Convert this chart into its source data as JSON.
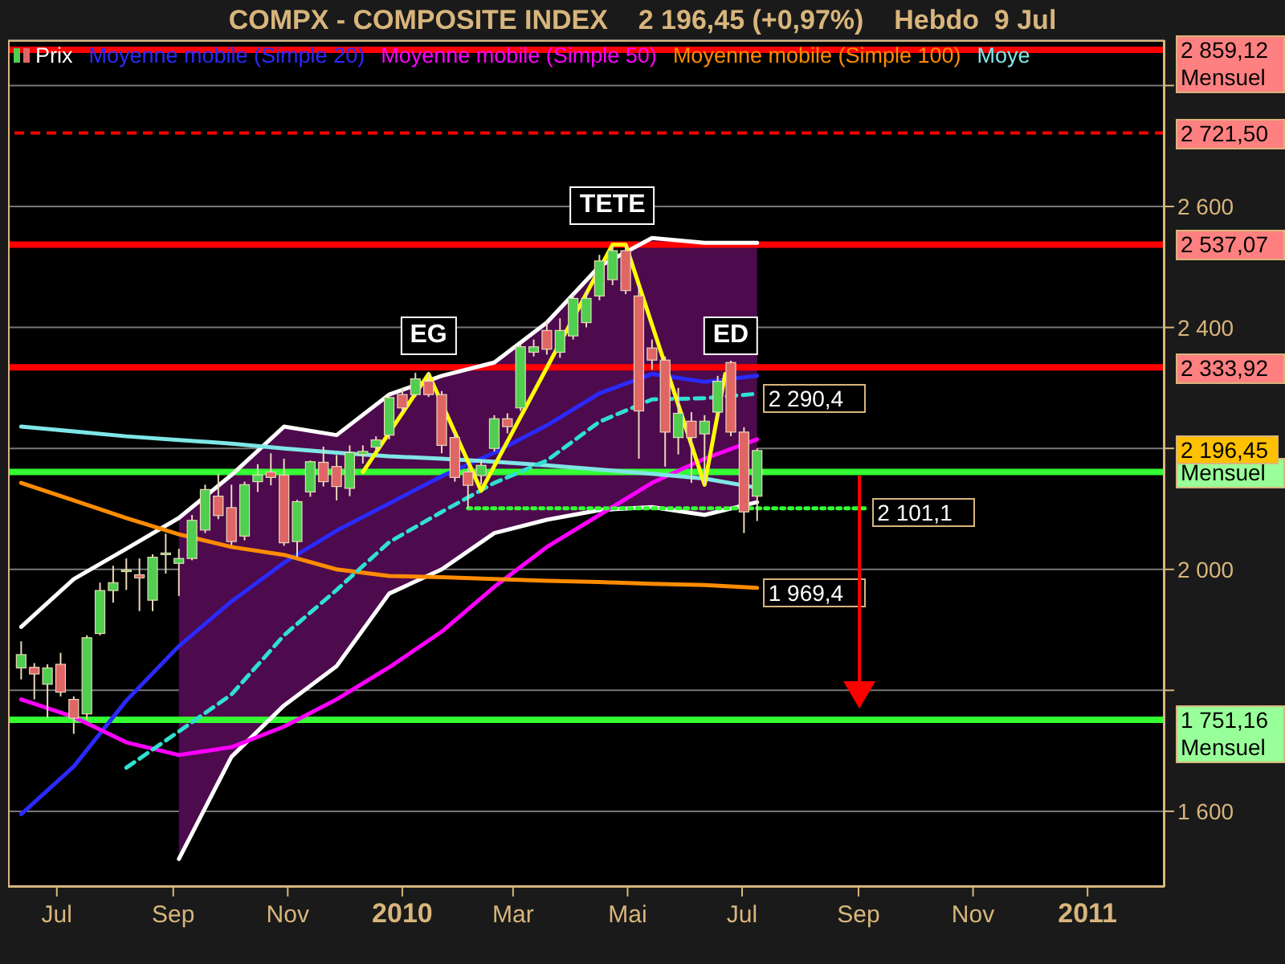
{
  "chart_data": {
    "type": "candlestick",
    "title": "COMPX - COMPOSITE INDEX    2 196,45 (+0,97%)    Hebdo  9 Jul",
    "series": [
      {
        "name": "Prix",
        "x": [
          "2009-06-12",
          "2009-06-19",
          "2009-06-26",
          "2009-07-03",
          "2009-07-10",
          "2009-07-17",
          "2009-07-24",
          "2009-07-31",
          "2009-08-07",
          "2009-08-14",
          "2009-08-21",
          "2009-08-28",
          "2009-09-04",
          "2009-09-11",
          "2009-09-18",
          "2009-09-25",
          "2009-10-02",
          "2009-10-09",
          "2009-10-16",
          "2009-10-23",
          "2009-10-30",
          "2009-11-06",
          "2009-11-13",
          "2009-11-20",
          "2009-11-27",
          "2009-12-04",
          "2009-12-11",
          "2009-12-18",
          "2009-12-25",
          "2010-01-01",
          "2010-01-08",
          "2010-01-15",
          "2010-01-22",
          "2010-01-29",
          "2010-02-05",
          "2010-02-12",
          "2010-02-19",
          "2010-02-26",
          "2010-03-05",
          "2010-03-12",
          "2010-03-19",
          "2010-03-26",
          "2010-04-02",
          "2010-04-09",
          "2010-04-16",
          "2010-04-23",
          "2010-04-30",
          "2010-05-07",
          "2010-05-14",
          "2010-05-21",
          "2010-05-28",
          "2010-06-04",
          "2010-06-11",
          "2010-06-18",
          "2010-06-25",
          "2010-07-02",
          "2010-07-09"
        ],
        "ohlc": [
          [
            1837,
            1881,
            1818,
            1859
          ],
          [
            1838,
            1845,
            1785,
            1827
          ],
          [
            1810,
            1843,
            1754,
            1837
          ],
          [
            1843,
            1862,
            1790,
            1797
          ],
          [
            1785,
            1790,
            1728,
            1754
          ],
          [
            1761,
            1891,
            1752,
            1887
          ],
          [
            1894,
            1978,
            1891,
            1965
          ],
          [
            1965,
            2006,
            1945,
            1978
          ],
          [
            1997,
            2018,
            1966,
            1999
          ],
          [
            1991,
            2018,
            1931,
            1986
          ],
          [
            1949,
            2025,
            1931,
            2020
          ],
          [
            2026,
            2059,
            1993,
            2027
          ],
          [
            2010,
            2034,
            1956,
            2018
          ],
          [
            2018,
            2090,
            2015,
            2081
          ],
          [
            2065,
            2140,
            2060,
            2132
          ],
          [
            2121,
            2158,
            2083,
            2089
          ],
          [
            2102,
            2140,
            2040,
            2046
          ],
          [
            2055,
            2145,
            2048,
            2140
          ],
          [
            2145,
            2174,
            2128,
            2156
          ],
          [
            2161,
            2192,
            2139,
            2152
          ],
          [
            2156,
            2183,
            2039,
            2044
          ],
          [
            2046,
            2115,
            2021,
            2112
          ],
          [
            2128,
            2180,
            2120,
            2178
          ],
          [
            2177,
            2203,
            2137,
            2145
          ],
          [
            2170,
            2189,
            2114,
            2137
          ],
          [
            2134,
            2205,
            2121,
            2193
          ],
          [
            2190,
            2205,
            2175,
            2195
          ],
          [
            2202,
            2220,
            2195,
            2214
          ],
          [
            2222,
            2290,
            2215,
            2284
          ],
          [
            2289,
            2300,
            2260,
            2267
          ],
          [
            2289,
            2325,
            2285,
            2315
          ],
          [
            2311,
            2326,
            2285,
            2289
          ],
          [
            2289,
            2295,
            2192,
            2205
          ],
          [
            2218,
            2225,
            2145,
            2152
          ],
          [
            2161,
            2168,
            2101,
            2139
          ],
          [
            2155,
            2180,
            2140,
            2172
          ],
          [
            2200,
            2255,
            2195,
            2249
          ],
          [
            2249,
            2258,
            2225,
            2236
          ],
          [
            2267,
            2372,
            2262,
            2368
          ],
          [
            2359,
            2380,
            2352,
            2368
          ],
          [
            2395,
            2410,
            2355,
            2364
          ],
          [
            2359,
            2415,
            2350,
            2395
          ],
          [
            2386,
            2455,
            2380,
            2448
          ],
          [
            2408,
            2460,
            2400,
            2448
          ],
          [
            2452,
            2520,
            2445,
            2510
          ],
          [
            2479,
            2535,
            2470,
            2527
          ],
          [
            2527,
            2537,
            2455,
            2461
          ],
          [
            2452,
            2470,
            2183,
            2262
          ],
          [
            2366,
            2380,
            2330,
            2346
          ],
          [
            2346,
            2352,
            2170,
            2227
          ],
          [
            2218,
            2300,
            2190,
            2258
          ],
          [
            2245,
            2260,
            2143,
            2218
          ],
          [
            2224,
            2255,
            2140,
            2245
          ],
          [
            2260,
            2320,
            2250,
            2311
          ],
          [
            2342,
            2345,
            2220,
            2227
          ],
          [
            2227,
            2235,
            2060,
            2095
          ],
          [
            2121,
            2200,
            2080,
            2196.45
          ]
        ],
        "value_labels": [
          null,
          null,
          null,
          null,
          null,
          null,
          null,
          null,
          null,
          null,
          null,
          null,
          null,
          null,
          null,
          null,
          null,
          null,
          null,
          null,
          null,
          null,
          null,
          null,
          null,
          null,
          null,
          null,
          null,
          null,
          null,
          null,
          null,
          null,
          null,
          null,
          null,
          null,
          null,
          null,
          null,
          null,
          null,
          null,
          null,
          null,
          null,
          null,
          null,
          null,
          null,
          null,
          null,
          null,
          null,
          null,
          "2 196,45"
        ]
      },
      {
        "name": "Moyenne mobile (Simple 20)",
        "type": "line",
        "color": "#2a2aff",
        "x": [
          "2009-06-12",
          "2009-07-10",
          "2009-08-07",
          "2009-09-04",
          "2009-10-02",
          "2009-10-30",
          "2009-11-27",
          "2009-12-25",
          "2010-01-22",
          "2010-02-19",
          "2010-03-19",
          "2010-04-16",
          "2010-05-14",
          "2010-06-11",
          "2010-07-09"
        ],
        "values": [
          1595,
          1674,
          1783,
          1873,
          1947,
          2011,
          2064,
          2109,
          2154,
          2193,
          2238,
          2291,
          2323,
          2310,
          2320
        ],
        "lower": [
          null,
          null,
          null,
          1521,
          1690,
          1775,
          1840,
          1960,
          2000,
          2060,
          2082,
          2098,
          2103,
          2090,
          2111
        ],
        "upper": [
          null,
          null,
          null,
          2085,
          2156,
          2236,
          2222,
          2289,
          2320,
          2342,
          2408,
          2501,
          2548,
          2540,
          2540
        ]
      },
      {
        "type": "line",
        "color": "#ffffff",
        "x": [
          "2009-06-12",
          "2009-07-10",
          "2009-08-07",
          "2009-09-04",
          "2009-10-02",
          "2009-10-30",
          "2009-11-27",
          "2009-12-25",
          "2010-01-22",
          "2010-02-19",
          "2010-03-19",
          "2010-04-16",
          "2010-05-14",
          "2010-06-11",
          "2010-07-09"
        ],
        "values": [
          1905,
          1984,
          2034,
          2085,
          2156,
          2236,
          2222,
          2289,
          2320,
          2342,
          2408,
          2501,
          2548,
          2540,
          2540
        ]
      },
      {
        "type": "line",
        "color": "#ffffff",
        "x": [
          "2009-09-04",
          "2009-10-02",
          "2009-10-30",
          "2009-11-27",
          "2009-12-25",
          "2010-01-22",
          "2010-02-19",
          "2010-03-19",
          "2010-04-16",
          "2010-05-14",
          "2010-06-11",
          "2010-07-09"
        ],
        "values": [
          1521,
          1690,
          1775,
          1840,
          1960,
          2000,
          2060,
          2082,
          2098,
          2103,
          2090,
          2111
        ]
      },
      {
        "name": "Moyenne mobile (Simple 50)",
        "type": "line",
        "color": "#ff00ff",
        "x": [
          "2009-06-12",
          "2009-07-10",
          "2009-08-07",
          "2009-09-04",
          "2009-10-02",
          "2009-10-30",
          "2009-11-27",
          "2009-12-25",
          "2010-01-22",
          "2010-02-19",
          "2010-03-19",
          "2010-04-16",
          "2010-05-14",
          "2010-06-11",
          "2010-07-09"
        ],
        "values": [
          1785,
          1756,
          1714,
          1693,
          1706,
          1740,
          1785,
          1838,
          1897,
          1971,
          2037,
          2090,
          2143,
          2183,
          2215
        ]
      },
      {
        "name": "Moyenne mobile (Simple 100)",
        "type": "line",
        "color": "#ff8c00",
        "x": [
          "2009-06-12",
          "2009-07-10",
          "2009-08-07",
          "2009-09-04",
          "2009-10-02",
          "2009-10-30",
          "2009-11-27",
          "2009-12-25",
          "2010-01-22",
          "2010-02-19",
          "2010-03-19",
          "2010-04-16",
          "2010-05-14",
          "2010-06-11",
          "2010-07-09"
        ],
        "values": [
          2143,
          2114,
          2085,
          2058,
          2037,
          2024,
          2000,
          1989,
          1987,
          1984,
          1981,
          1979,
          1976,
          1974,
          1969.4
        ],
        "value_labels": [
          null,
          null,
          null,
          null,
          null,
          null,
          null,
          null,
          null,
          null,
          null,
          null,
          null,
          null,
          "1 969,4"
        ]
      },
      {
        "name": "Moye",
        "type": "line",
        "color": "#7fe6e6",
        "x": [
          "2009-06-12",
          "2009-07-10",
          "2009-08-07",
          "2009-09-04",
          "2009-10-02",
          "2009-10-30",
          "2009-11-27",
          "2009-12-25",
          "2010-01-22",
          "2010-02-19",
          "2010-03-19",
          "2010-04-16",
          "2010-05-14",
          "2010-06-11",
          "2010-07-09"
        ],
        "values": [
          2236,
          2228,
          2220,
          2214,
          2208,
          2200,
          2193,
          2187,
          2183,
          2178,
          2172,
          2165,
          2158,
          2150,
          2135
        ]
      },
      {
        "type": "line",
        "color": "#30e0d0",
        "line_style": "dashed",
        "x": [
          "2009-08-07",
          "2009-09-04",
          "2009-10-02",
          "2009-10-30",
          "2009-11-27",
          "2009-12-25",
          "2010-01-22",
          "2010-02-19",
          "2010-03-19",
          "2010-04-16",
          "2010-05-14",
          "2010-06-11",
          "2010-07-09"
        ],
        "values": [
          1672,
          1732,
          1793,
          1891,
          1966,
          2045,
          2095,
          2143,
          2180,
          2244,
          2281,
          2283,
          2290.4
        ],
        "value_labels": [
          null,
          null,
          null,
          null,
          null,
          null,
          null,
          null,
          null,
          null,
          null,
          null,
          "2 290,4"
        ]
      },
      {
        "type": "line",
        "color": "#ffff00",
        "x": [
          "2009-12-11",
          "2010-01-15",
          "2010-02-12",
          "2010-04-23",
          "2010-04-30",
          "2010-06-11",
          "2010-06-22"
        ],
        "values": [
          2161,
          2323,
          2130,
          2537,
          2537,
          2140,
          2323
        ]
      },
      {
        "type": "line",
        "color": "#33ff33",
        "line_style": "dotted",
        "x": [
          "2010-02-05",
          "2010-09-05"
        ],
        "values": [
          2101.1,
          2101.1
        ],
        "value_labels": [
          null,
          "2 101,1"
        ]
      }
    ],
    "ref_lines": [
      {
        "axis": "y",
        "value": 2859.12,
        "label": "2 859,12 Mensuel",
        "color": "#ff0000"
      },
      {
        "axis": "y",
        "value": 2721.5,
        "label": "2 721,50",
        "color": "#ff0000",
        "line_style": "dashed"
      },
      {
        "axis": "y",
        "value": 2537.07,
        "label": "2 537,07",
        "color": "#ff0000"
      },
      {
        "axis": "y",
        "value": 2333.92,
        "label": "2 333,92",
        "color": "#ff0000"
      },
      {
        "axis": "y",
        "value": 2161,
        "label": "Mensuel",
        "color": "#33ff33"
      },
      {
        "axis": "y",
        "value": 1751.16,
        "label": "1 751,16 Mensuel",
        "color": "#33ff33"
      }
    ],
    "annotations": [
      {
        "text": "EG",
        "x": "2010-01-15",
        "y": 2323
      },
      {
        "text": "TETE",
        "x": "2010-04-23",
        "y": 2537
      },
      {
        "text": "ED",
        "x": "2010-06-25",
        "y": 2323
      }
    ],
    "xlim": [
      "2009-06-05",
      "2011-02-11"
    ],
    "xticks": [
      {
        "value": "2009-07-01",
        "label": "Jul"
      },
      {
        "value": "2009-09-01",
        "label": "Sep"
      },
      {
        "value": "2009-11-01",
        "label": "Nov"
      },
      {
        "value": "2010-01-01",
        "label": "2010"
      },
      {
        "value": "2010-03-01",
        "label": "Mar"
      },
      {
        "value": "2010-05-01",
        "label": "Mai"
      },
      {
        "value": "2010-07-01",
        "label": "Jul"
      },
      {
        "value": "2010-09-01",
        "label": "Sep"
      },
      {
        "value": "2010-11-01",
        "label": "Nov"
      },
      {
        "value": "2011-01-01",
        "label": "2011"
      }
    ],
    "ylim": [
      1475,
      2875
    ],
    "yticks": [
      {
        "value": 1600,
        "label": "1 600"
      },
      {
        "value": 1800,
        "label": null
      },
      {
        "value": 2000,
        "label": "2 000"
      },
      {
        "value": 2200,
        "label": null
      },
      {
        "value": 2400,
        "label": "2 400"
      },
      {
        "value": 2600,
        "label": "2 600"
      },
      {
        "value": 2800,
        "label": null
      }
    ],
    "grid": "y",
    "legend": "top left"
  }
}
